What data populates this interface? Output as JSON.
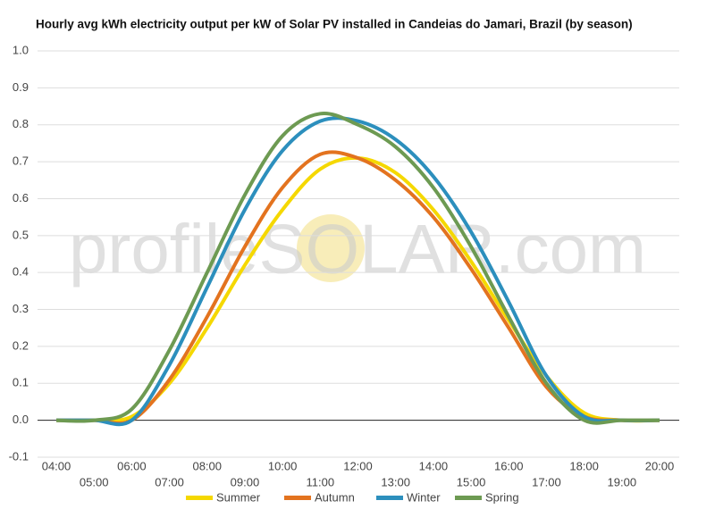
{
  "chart_data": {
    "type": "line",
    "title": "Hourly avg kWh electricity output per kW of Solar PV installed in Candeias do Jamari, Brazil (by season)",
    "watermark": "profileSOLAR.com",
    "categories": [
      "04:00",
      "05:00",
      "06:00",
      "07:00",
      "08:00",
      "09:00",
      "10:00",
      "11:00",
      "12:00",
      "13:00",
      "14:00",
      "15:00",
      "16:00",
      "17:00",
      "18:00",
      "19:00",
      "20:00"
    ],
    "series": [
      {
        "name": "Summer",
        "color": "#f5d800",
        "values": [
          0,
          0,
          0.01,
          0.1,
          0.25,
          0.42,
          0.57,
          0.68,
          0.71,
          0.67,
          0.57,
          0.43,
          0.27,
          0.12,
          0.02,
          0,
          0
        ]
      },
      {
        "name": "Autumn",
        "color": "#e3731f",
        "values": [
          0,
          0,
          0,
          0.11,
          0.28,
          0.47,
          0.63,
          0.72,
          0.71,
          0.65,
          0.55,
          0.41,
          0.25,
          0.09,
          0.01,
          0,
          0
        ]
      },
      {
        "name": "Winter",
        "color": "#2c8fbd",
        "values": [
          0,
          0,
          0,
          0.15,
          0.36,
          0.57,
          0.73,
          0.81,
          0.81,
          0.76,
          0.66,
          0.51,
          0.32,
          0.12,
          0.01,
          0,
          0
        ]
      },
      {
        "name": "Spring",
        "color": "#6d9a52",
        "values": [
          0,
          0,
          0.03,
          0.19,
          0.4,
          0.61,
          0.77,
          0.83,
          0.8,
          0.74,
          0.63,
          0.47,
          0.28,
          0.1,
          0,
          0,
          0
        ]
      }
    ],
    "ylim": [
      -0.1,
      1.0
    ],
    "yticks": [
      -0.1,
      {
        "value": 0,
        "label": "0.0"
      },
      0.1,
      0.2,
      0.3,
      0.4,
      0.5,
      0.6,
      0.7,
      0.8,
      0.9,
      {
        "value": 1,
        "label": "1.0"
      }
    ],
    "grid": true
  }
}
